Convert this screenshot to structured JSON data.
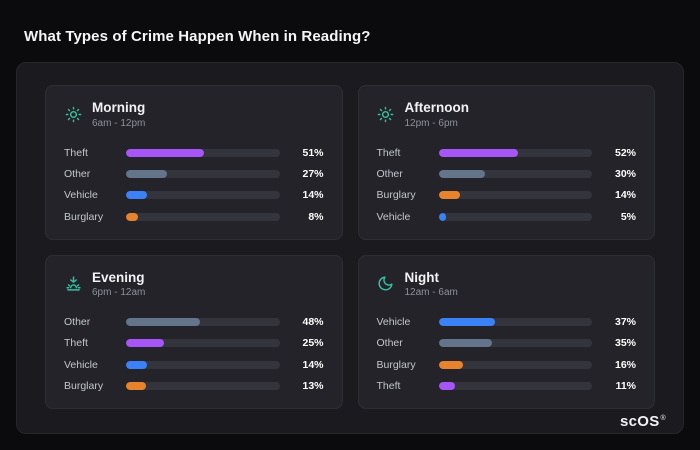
{
  "title": "What Types of Crime Happen When in Reading?",
  "logo": {
    "text": "scOS",
    "mark": "®"
  },
  "colors": {
    "theft": "#a855f7",
    "other": "#64748b",
    "vehicle": "#3b82f6",
    "burglary": "#e8832d",
    "icon": "#34c3a2"
  },
  "cards": [
    {
      "title": "Morning",
      "subtitle": "6am - 12pm",
      "icon": "sun-icon",
      "rows": [
        {
          "label": "Theft",
          "value": 51,
          "pct": "51%",
          "color": "#a855f7"
        },
        {
          "label": "Other",
          "value": 27,
          "pct": "27%",
          "color": "#64748b"
        },
        {
          "label": "Vehicle",
          "value": 14,
          "pct": "14%",
          "color": "#3b82f6"
        },
        {
          "label": "Burglary",
          "value": 8,
          "pct": "8%",
          "color": "#e8832d"
        }
      ]
    },
    {
      "title": "Afternoon",
      "subtitle": "12pm - 6pm",
      "icon": "sun-icon",
      "rows": [
        {
          "label": "Theft",
          "value": 52,
          "pct": "52%",
          "color": "#a855f7"
        },
        {
          "label": "Other",
          "value": 30,
          "pct": "30%",
          "color": "#64748b"
        },
        {
          "label": "Burglary",
          "value": 14,
          "pct": "14%",
          "color": "#e8832d"
        },
        {
          "label": "Vehicle",
          "value": 5,
          "pct": "5%",
          "color": "#3b82f6"
        }
      ]
    },
    {
      "title": "Evening",
      "subtitle": "6pm - 12am",
      "icon": "sunset-icon",
      "rows": [
        {
          "label": "Other",
          "value": 48,
          "pct": "48%",
          "color": "#64748b"
        },
        {
          "label": "Theft",
          "value": 25,
          "pct": "25%",
          "color": "#a855f7"
        },
        {
          "label": "Vehicle",
          "value": 14,
          "pct": "14%",
          "color": "#3b82f6"
        },
        {
          "label": "Burglary",
          "value": 13,
          "pct": "13%",
          "color": "#e8832d"
        }
      ]
    },
    {
      "title": "Night",
      "subtitle": "12am - 6am",
      "icon": "moon-icon",
      "rows": [
        {
          "label": "Vehicle",
          "value": 37,
          "pct": "37%",
          "color": "#3b82f6"
        },
        {
          "label": "Other",
          "value": 35,
          "pct": "35%",
          "color": "#64748b"
        },
        {
          "label": "Burglary",
          "value": 16,
          "pct": "16%",
          "color": "#e8832d"
        },
        {
          "label": "Theft",
          "value": 11,
          "pct": "11%",
          "color": "#a855f7"
        }
      ]
    }
  ],
  "chart_data": [
    {
      "type": "bar",
      "title": "Morning",
      "subtitle": "6am - 12pm",
      "orientation": "horizontal",
      "categories": [
        "Theft",
        "Other",
        "Vehicle",
        "Burglary"
      ],
      "values": [
        51,
        27,
        14,
        8
      ],
      "unit": "%",
      "xlim": [
        0,
        100
      ]
    },
    {
      "type": "bar",
      "title": "Afternoon",
      "subtitle": "12pm - 6pm",
      "orientation": "horizontal",
      "categories": [
        "Theft",
        "Other",
        "Burglary",
        "Vehicle"
      ],
      "values": [
        52,
        30,
        14,
        5
      ],
      "unit": "%",
      "xlim": [
        0,
        100
      ]
    },
    {
      "type": "bar",
      "title": "Evening",
      "subtitle": "6pm - 12am",
      "orientation": "horizontal",
      "categories": [
        "Other",
        "Theft",
        "Vehicle",
        "Burglary"
      ],
      "values": [
        48,
        25,
        14,
        13
      ],
      "unit": "%",
      "xlim": [
        0,
        100
      ]
    },
    {
      "type": "bar",
      "title": "Night",
      "subtitle": "12am - 6am",
      "orientation": "horizontal",
      "categories": [
        "Vehicle",
        "Other",
        "Burglary",
        "Theft"
      ],
      "values": [
        37,
        35,
        16,
        11
      ],
      "unit": "%",
      "xlim": [
        0,
        100
      ]
    }
  ]
}
